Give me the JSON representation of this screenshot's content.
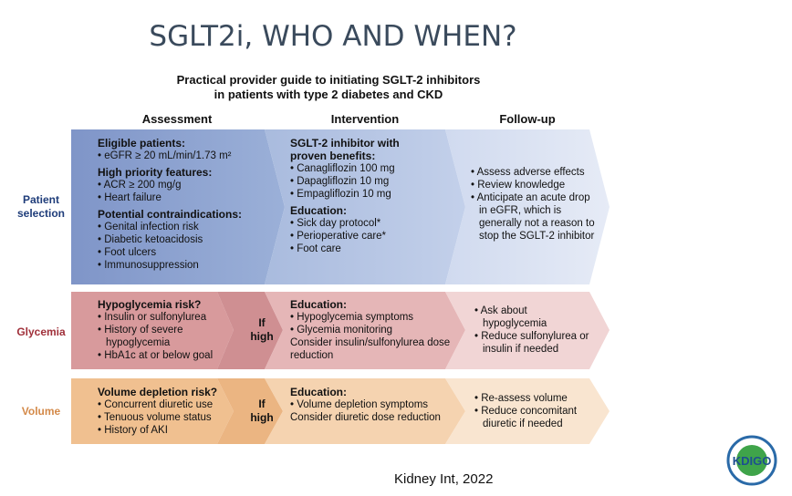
{
  "title": "SGLT2i,  WHO AND WHEN?",
  "subtitle": [
    "Practical provider guide to initiating SGLT-2 inhibitors",
    "in patients with type 2 diabetes and CKD"
  ],
  "columns": [
    "Assessment",
    "Intervention",
    "Follow-up"
  ],
  "rows": [
    {
      "label": [
        "Patient",
        "selection"
      ],
      "assessment": [
        {
          "heading": "Eligible patients:",
          "items": [
            "eGFR ≥ 20 mL/min/1.73 m²"
          ]
        },
        {
          "heading": "High priority features:",
          "items": [
            "ACR ≥ 200 mg/g",
            "Heart failure"
          ]
        },
        {
          "heading": "Potential contraindications:",
          "items": [
            "Genital infection risk",
            "Diabetic ketoacidosis",
            "Foot ulcers",
            "Immunosuppression"
          ]
        }
      ],
      "intervention": [
        {
          "heading": "SGLT-2 inhibitor with proven benefits:",
          "items": [
            "Canagliflozin 100 mg",
            "Dapagliflozin 10 mg",
            "Empagliflozin 10 mg"
          ]
        },
        {
          "heading": "Education:",
          "items": [
            "Sick day protocol*",
            "Perioperative care*",
            "Foot care"
          ]
        }
      ],
      "followup": [
        {
          "items": [
            "Assess adverse effects",
            "Review knowledge",
            "Anticipate an acute drop in eGFR, which is generally not a reason to stop the SGLT-2 inhibitor"
          ]
        }
      ]
    },
    {
      "label": [
        "Glycemia"
      ],
      "assessment": [
        {
          "heading": "Hypoglycemia risk?",
          "items": [
            "Insulin or sulfonylurea",
            "History of severe hypoglycemia",
            "HbA1c at or below goal"
          ]
        }
      ],
      "condition": [
        "If",
        "high"
      ],
      "intervention": [
        {
          "heading": "Education:",
          "items": [
            "Hypoglycemia symptoms",
            "Glycemia monitoring"
          ],
          "note": "Consider insulin/sulfonylurea dose reduction"
        }
      ],
      "followup": [
        {
          "items": [
            "Ask about hypoglycemia",
            "Reduce sulfonylurea or insulin if needed"
          ]
        }
      ]
    },
    {
      "label": [
        "Volume"
      ],
      "assessment": [
        {
          "heading": "Volume depletion risk?",
          "items": [
            "Concurrent diuretic use",
            "Tenuous volume status",
            "History of AKI"
          ]
        }
      ],
      "condition": [
        "If",
        "high"
      ],
      "intervention": [
        {
          "heading": "Education:",
          "items": [
            "Volume depletion symptoms"
          ],
          "note": "Consider diuretic dose reduction"
        }
      ],
      "followup": [
        {
          "items": [
            "Re-assess volume",
            "Reduce concomitant diuretic if needed"
          ]
        }
      ]
    }
  ],
  "citation": "Kidney Int, 2022",
  "logo": "KDIGO"
}
